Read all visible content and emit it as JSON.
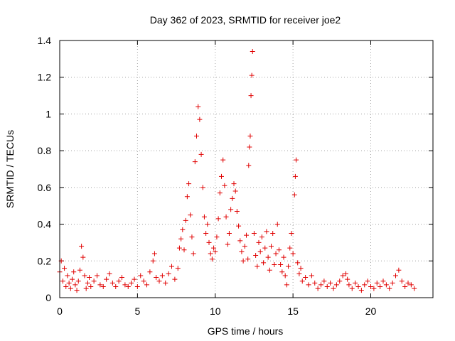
{
  "chart_data": {
    "type": "scatter",
    "title": "Day 362 of 2023, SRMTID for receiver joe2",
    "xlabel": "GPS time / hours",
    "ylabel": "SRMTID / TECUs",
    "xlim": [
      0,
      24
    ],
    "ylim": [
      0,
      1.4
    ],
    "xticks": [
      0,
      5,
      10,
      15,
      20
    ],
    "xtick_labels": [
      "0",
      "5",
      "10",
      "15",
      "20"
    ],
    "yticks": [
      0,
      0.2,
      0.4,
      0.6,
      0.8,
      1.0,
      1.2,
      1.4
    ],
    "ytick_labels": [
      "0",
      "0.2",
      "0.4",
      "0.6",
      "0.8",
      "1",
      "1.2",
      "1.4"
    ],
    "grid": true,
    "marker": "+",
    "color": "#e00000",
    "series": [
      {
        "name": "SRMTID",
        "points": [
          [
            0.0,
            0.14
          ],
          [
            0.1,
            0.2
          ],
          [
            0.2,
            0.09
          ],
          [
            0.3,
            0.16
          ],
          [
            0.4,
            0.06
          ],
          [
            0.5,
            0.12
          ],
          [
            0.6,
            0.08
          ],
          [
            0.7,
            0.05
          ],
          [
            0.8,
            0.1
          ],
          [
            0.9,
            0.14
          ],
          [
            1.0,
            0.07
          ],
          [
            1.1,
            0.04
          ],
          [
            1.2,
            0.09
          ],
          [
            1.3,
            0.15
          ],
          [
            1.4,
            0.28
          ],
          [
            1.5,
            0.22
          ],
          [
            1.6,
            0.12
          ],
          [
            1.7,
            0.05
          ],
          [
            1.8,
            0.08
          ],
          [
            1.9,
            0.11
          ],
          [
            2.0,
            0.06
          ],
          [
            2.2,
            0.09
          ],
          [
            2.4,
            0.12
          ],
          [
            2.6,
            0.07
          ],
          [
            2.8,
            0.06
          ],
          [
            3.0,
            0.1
          ],
          [
            3.2,
            0.13
          ],
          [
            3.4,
            0.08
          ],
          [
            3.6,
            0.06
          ],
          [
            3.8,
            0.09
          ],
          [
            4.0,
            0.11
          ],
          [
            4.2,
            0.07
          ],
          [
            4.4,
            0.06
          ],
          [
            4.6,
            0.08
          ],
          [
            4.8,
            0.1
          ],
          [
            5.0,
            0.06
          ],
          [
            5.2,
            0.12
          ],
          [
            5.4,
            0.09
          ],
          [
            5.6,
            0.07
          ],
          [
            5.8,
            0.14
          ],
          [
            6.0,
            0.2
          ],
          [
            6.1,
            0.24
          ],
          [
            6.2,
            0.11
          ],
          [
            6.4,
            0.09
          ],
          [
            6.6,
            0.12
          ],
          [
            6.8,
            0.08
          ],
          [
            7.0,
            0.13
          ],
          [
            7.2,
            0.17
          ],
          [
            7.4,
            0.1
          ],
          [
            7.6,
            0.16
          ],
          [
            7.7,
            0.27
          ],
          [
            7.8,
            0.32
          ],
          [
            7.9,
            0.37
          ],
          [
            8.0,
            0.26
          ],
          [
            8.1,
            0.42
          ],
          [
            8.2,
            0.55
          ],
          [
            8.3,
            0.62
          ],
          [
            8.4,
            0.45
          ],
          [
            8.5,
            0.33
          ],
          [
            8.6,
            0.24
          ],
          [
            8.7,
            0.74
          ],
          [
            8.8,
            0.88
          ],
          [
            8.9,
            1.04
          ],
          [
            9.0,
            0.97
          ],
          [
            9.1,
            0.78
          ],
          [
            9.2,
            0.6
          ],
          [
            9.3,
            0.44
          ],
          [
            9.4,
            0.35
          ],
          [
            9.5,
            0.4
          ],
          [
            9.6,
            0.3
          ],
          [
            9.7,
            0.24
          ],
          [
            9.8,
            0.21
          ],
          [
            9.9,
            0.27
          ],
          [
            10.0,
            0.25
          ],
          [
            10.1,
            0.33
          ],
          [
            10.2,
            0.43
          ],
          [
            10.3,
            0.57
          ],
          [
            10.4,
            0.66
          ],
          [
            10.5,
            0.75
          ],
          [
            10.6,
            0.61
          ],
          [
            10.7,
            0.44
          ],
          [
            10.8,
            0.29
          ],
          [
            10.9,
            0.35
          ],
          [
            11.0,
            0.48
          ],
          [
            11.1,
            0.54
          ],
          [
            11.2,
            0.62
          ],
          [
            11.3,
            0.58
          ],
          [
            11.4,
            0.47
          ],
          [
            11.5,
            0.39
          ],
          [
            11.6,
            0.31
          ],
          [
            11.7,
            0.25
          ],
          [
            11.8,
            0.2
          ],
          [
            11.9,
            0.28
          ],
          [
            12.0,
            0.34
          ],
          [
            12.1,
            0.21
          ],
          [
            12.15,
            0.72
          ],
          [
            12.2,
            0.82
          ],
          [
            12.25,
            0.88
          ],
          [
            12.3,
            1.1
          ],
          [
            12.35,
            1.21
          ],
          [
            12.4,
            1.34
          ],
          [
            12.5,
            0.35
          ],
          [
            12.6,
            0.23
          ],
          [
            12.7,
            0.17
          ],
          [
            12.8,
            0.3
          ],
          [
            12.9,
            0.25
          ],
          [
            13.0,
            0.33
          ],
          [
            13.1,
            0.19
          ],
          [
            13.2,
            0.27
          ],
          [
            13.3,
            0.36
          ],
          [
            13.4,
            0.22
          ],
          [
            13.5,
            0.15
          ],
          [
            13.6,
            0.28
          ],
          [
            13.7,
            0.35
          ],
          [
            13.8,
            0.18
          ],
          [
            13.9,
            0.24
          ],
          [
            14.0,
            0.4
          ],
          [
            14.1,
            0.26
          ],
          [
            14.2,
            0.18
          ],
          [
            14.3,
            0.14
          ],
          [
            14.4,
            0.22
          ],
          [
            14.5,
            0.12
          ],
          [
            14.6,
            0.07
          ],
          [
            14.7,
            0.17
          ],
          [
            14.8,
            0.27
          ],
          [
            14.9,
            0.35
          ],
          [
            15.0,
            0.24
          ],
          [
            15.1,
            0.56
          ],
          [
            15.15,
            0.66
          ],
          [
            15.2,
            0.75
          ],
          [
            15.3,
            0.19
          ],
          [
            15.4,
            0.13
          ],
          [
            15.5,
            0.16
          ],
          [
            15.6,
            0.09
          ],
          [
            15.8,
            0.11
          ],
          [
            16.0,
            0.07
          ],
          [
            16.2,
            0.12
          ],
          [
            16.4,
            0.08
          ],
          [
            16.6,
            0.05
          ],
          [
            16.8,
            0.07
          ],
          [
            17.0,
            0.09
          ],
          [
            17.2,
            0.06
          ],
          [
            17.4,
            0.08
          ],
          [
            17.6,
            0.05
          ],
          [
            17.8,
            0.07
          ],
          [
            18.0,
            0.09
          ],
          [
            18.2,
            0.12
          ],
          [
            18.4,
            0.13
          ],
          [
            18.5,
            0.1
          ],
          [
            18.6,
            0.07
          ],
          [
            18.8,
            0.05
          ],
          [
            19.0,
            0.08
          ],
          [
            19.2,
            0.06
          ],
          [
            19.4,
            0.04
          ],
          [
            19.6,
            0.07
          ],
          [
            19.8,
            0.09
          ],
          [
            20.0,
            0.06
          ],
          [
            20.2,
            0.05
          ],
          [
            20.4,
            0.08
          ],
          [
            20.6,
            0.06
          ],
          [
            20.8,
            0.09
          ],
          [
            21.0,
            0.07
          ],
          [
            21.2,
            0.05
          ],
          [
            21.4,
            0.08
          ],
          [
            21.6,
            0.12
          ],
          [
            21.8,
            0.15
          ],
          [
            22.0,
            0.09
          ],
          [
            22.2,
            0.06
          ],
          [
            22.4,
            0.08
          ],
          [
            22.6,
            0.07
          ],
          [
            22.8,
            0.05
          ]
        ]
      }
    ]
  }
}
